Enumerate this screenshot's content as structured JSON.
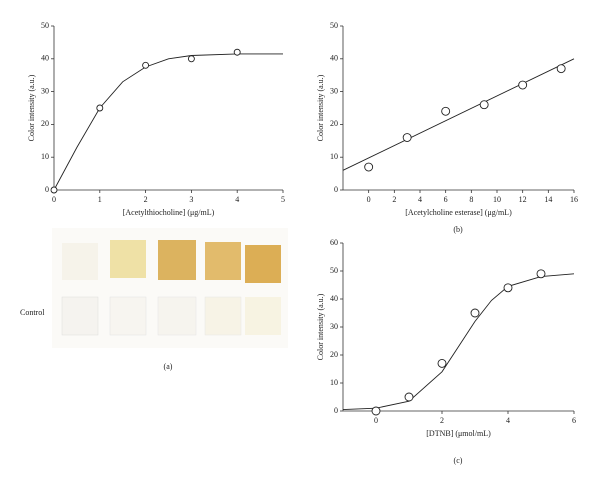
{
  "chart_data": [
    {
      "type": "scatter",
      "xlabel": "[Acetylthiocholine] (μg/mL)",
      "ylabel": "Color intensity (a.u.)",
      "panel_label": "(a)",
      "xlim": [
        0,
        5
      ],
      "ylim": [
        0,
        50
      ],
      "xticks": [
        0,
        1,
        2,
        3,
        4,
        5
      ],
      "yticks": [
        0,
        10,
        20,
        30,
        40,
        50
      ],
      "points": {
        "x": [
          0,
          1,
          2,
          3,
          4
        ],
        "y": [
          0,
          25,
          38,
          40,
          42
        ]
      },
      "fit": {
        "x": [
          0,
          0.5,
          1,
          1.5,
          2,
          2.5,
          3,
          4,
          5
        ],
        "y": [
          0,
          13,
          25,
          33,
          37.5,
          40,
          41,
          41.5,
          41.5
        ]
      }
    },
    {
      "type": "scatter",
      "xlabel": "[Acetylcholine esterase] (μg/mL)",
      "ylabel": "Color intensity (a.u.)",
      "panel_label": "(b)",
      "xlim": [
        -2,
        16
      ],
      "ylim": [
        0,
        50
      ],
      "xticks": [
        0,
        2,
        4,
        6,
        8,
        10,
        12,
        14,
        16
      ],
      "yticks": [
        0,
        10,
        20,
        30,
        40,
        50
      ],
      "points": {
        "x": [
          0,
          3,
          6,
          9,
          12,
          15
        ],
        "y": [
          7,
          16,
          24,
          26,
          32,
          37
        ]
      },
      "fit": {
        "x": [
          -2,
          16
        ],
        "y": [
          6,
          40
        ]
      }
    },
    {
      "type": "scatter",
      "xlabel": "[DTNB] (μmol/mL)",
      "ylabel": "Color intensity (a.u.)",
      "panel_label": "(c)",
      "xlim": [
        -1,
        6
      ],
      "ylim": [
        0,
        60
      ],
      "xticks": [
        0,
        2,
        4,
        6
      ],
      "yticks": [
        0,
        10,
        20,
        30,
        40,
        50,
        60
      ],
      "points": {
        "x": [
          0,
          1,
          2,
          3,
          4,
          5
        ],
        "y": [
          0,
          5,
          17,
          35,
          44,
          49
        ]
      },
      "fit": {
        "x": [
          -1,
          0,
          1,
          2,
          2.5,
          3,
          3.5,
          4,
          5,
          6
        ],
        "y": [
          0.5,
          1,
          3.5,
          14,
          23,
          32,
          39.5,
          44.5,
          48,
          49
        ]
      }
    }
  ],
  "photo": {
    "row_label": "Control"
  }
}
